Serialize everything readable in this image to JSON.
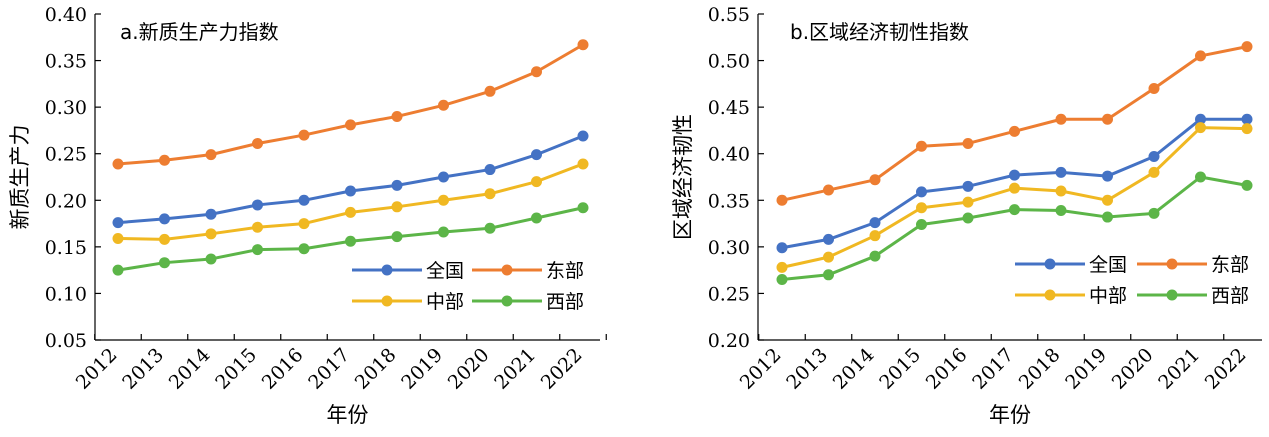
{
  "chart_data": [
    {
      "type": "line",
      "title": "a.新质生产力指数",
      "xlabel": "年份",
      "ylabel": "新质生产力",
      "ylim": [
        0.05,
        0.4
      ],
      "yticks": [
        "0.05",
        "0.10",
        "0.15",
        "0.20",
        "0.25",
        "0.30",
        "0.35",
        "0.40"
      ],
      "categories": [
        "2012",
        "2013",
        "2014",
        "2015",
        "2016",
        "2017",
        "2018",
        "2019",
        "2020",
        "2021",
        "2022"
      ],
      "legend_position": "bottom-right",
      "series": [
        {
          "name": "全国",
          "color": "#4472c4",
          "values": [
            0.176,
            0.18,
            0.185,
            0.195,
            0.2,
            0.21,
            0.216,
            0.225,
            0.233,
            0.249,
            0.269
          ]
        },
        {
          "name": "东部",
          "color": "#ed7d31",
          "values": [
            0.239,
            0.243,
            0.249,
            0.261,
            0.27,
            0.281,
            0.29,
            0.302,
            0.317,
            0.338,
            0.367
          ]
        },
        {
          "name": "中部",
          "color": "#f0b822",
          "values": [
            0.159,
            0.158,
            0.164,
            0.171,
            0.175,
            0.187,
            0.193,
            0.2,
            0.207,
            0.22,
            0.239
          ]
        },
        {
          "name": "西部",
          "color": "#5cb548",
          "values": [
            0.125,
            0.133,
            0.137,
            0.147,
            0.148,
            0.156,
            0.161,
            0.166,
            0.17,
            0.181,
            0.192
          ]
        }
      ]
    },
    {
      "type": "line",
      "title": "b.区域经济韧性指数",
      "xlabel": "年份",
      "ylabel": "区域经济韧性",
      "ylim": [
        0.2,
        0.55
      ],
      "yticks": [
        "0.20",
        "0.25",
        "0.30",
        "0.35",
        "0.40",
        "0.45",
        "0.50",
        "0.55"
      ],
      "categories": [
        "2012",
        "2013",
        "2014",
        "2015",
        "2016",
        "2017",
        "2018",
        "2019",
        "2020",
        "2021",
        "2022"
      ],
      "legend_position": "bottom-right",
      "series": [
        {
          "name": "全国",
          "color": "#4472c4",
          "values": [
            0.299,
            0.308,
            0.326,
            0.359,
            0.365,
            0.377,
            0.38,
            0.376,
            0.397,
            0.437,
            0.437
          ]
        },
        {
          "name": "东部",
          "color": "#ed7d31",
          "values": [
            0.35,
            0.361,
            0.372,
            0.408,
            0.411,
            0.424,
            0.437,
            0.437,
            0.47,
            0.505,
            0.515
          ]
        },
        {
          "name": "中部",
          "color": "#f0b822",
          "values": [
            0.278,
            0.289,
            0.312,
            0.342,
            0.348,
            0.363,
            0.36,
            0.35,
            0.38,
            0.428,
            0.427
          ]
        },
        {
          "name": "西部",
          "color": "#5cb548",
          "values": [
            0.265,
            0.27,
            0.29,
            0.324,
            0.331,
            0.34,
            0.339,
            0.332,
            0.336,
            0.375,
            0.366
          ]
        }
      ]
    }
  ]
}
